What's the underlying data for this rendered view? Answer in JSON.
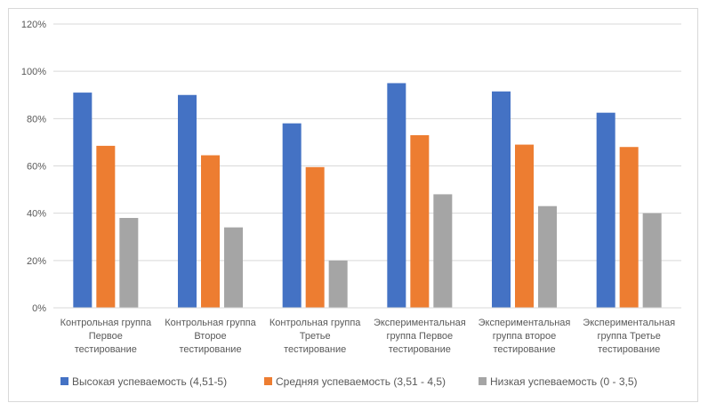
{
  "chart_data": {
    "type": "bar",
    "title": "",
    "xlabel": "",
    "ylabel": "",
    "ylim": [
      0,
      120
    ],
    "y_tick_values": [
      0,
      20,
      40,
      60,
      80,
      100,
      120
    ],
    "y_tick_labels": [
      "0%",
      "20%",
      "40%",
      "60%",
      "80%",
      "100%",
      "120%"
    ],
    "grid": true,
    "legend_position": "bottom",
    "categories": [
      [
        "Контрольная группа",
        "Первое",
        "тестирование"
      ],
      [
        "Контрольная группа",
        "Второе",
        "тестирование"
      ],
      [
        "Контрольная группа",
        "Третье",
        "тестирование"
      ],
      [
        "Экспериментальная",
        "группа Первое",
        "тестирование"
      ],
      [
        "Экспериментальная",
        "группа второе",
        "тестирование"
      ],
      [
        "Экспериментальная",
        "группа Третье",
        "тестирование"
      ]
    ],
    "series": [
      {
        "name": "Высокая успеваемость (4,51-5)",
        "color": "#4472c4",
        "values": [
          91,
          90,
          78,
          95,
          91.5,
          82.5
        ]
      },
      {
        "name": "Средняя успеваемость (3,51 - 4,5)",
        "color": "#ed7d31",
        "values": [
          68.5,
          64.5,
          59.5,
          73,
          69,
          68
        ]
      },
      {
        "name": "Низкая успеваемость (0 - 3,5)",
        "color": "#a5a5a5",
        "values": [
          38,
          34,
          20,
          48,
          43,
          40
        ]
      }
    ]
  }
}
